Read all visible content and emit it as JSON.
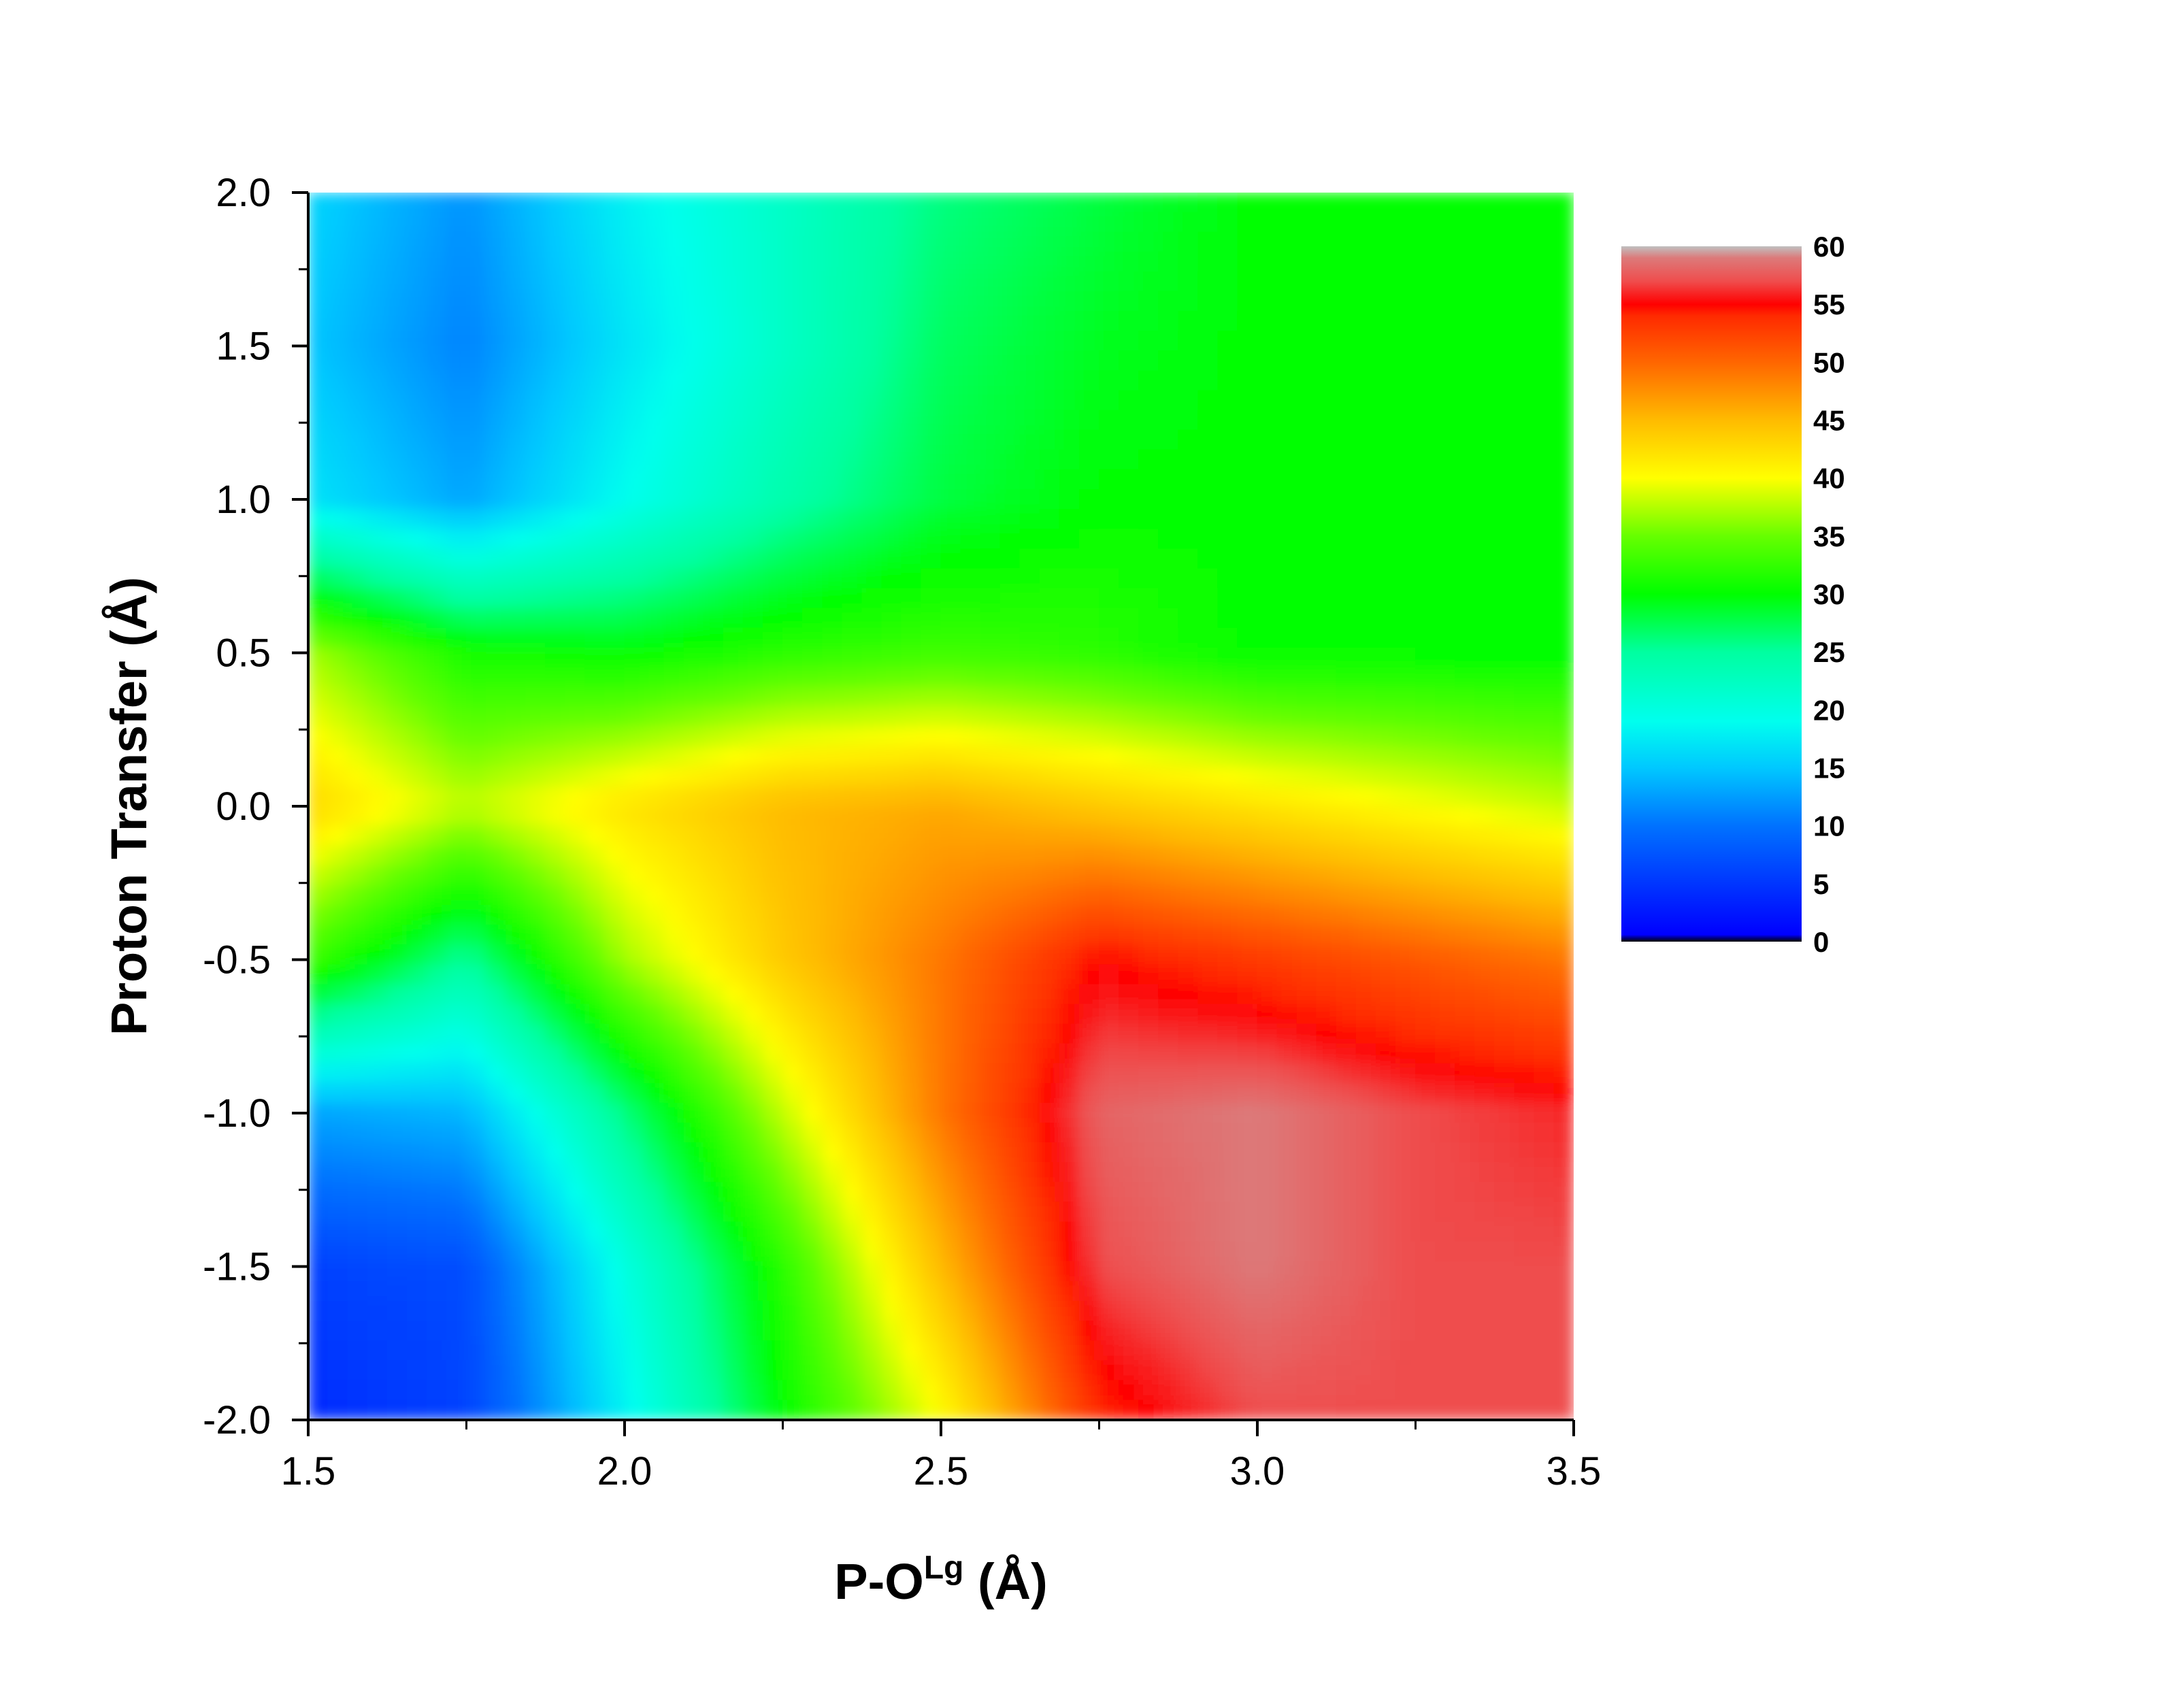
{
  "chart_data": {
    "type": "heatmap",
    "title": "",
    "xlabel": {
      "main": "P-O",
      "sup": "Lg",
      "unit": " (Å)"
    },
    "ylabel": "Proton Transfer (Å)",
    "xlim": [
      1.5,
      3.5
    ],
    "ylim": [
      -2.0,
      2.0
    ],
    "x_ticks": [
      "1.5",
      "2.0",
      "2.5",
      "3.0",
      "3.5"
    ],
    "y_ticks": [
      "2.0",
      "1.5",
      "1.0",
      "0.5",
      "0.0",
      "-0.5",
      "-1.0",
      "-1.5",
      "-2.0"
    ],
    "colorbar": {
      "range": [
        0,
        60
      ],
      "ticks": [
        "60",
        "55",
        "50",
        "45",
        "40",
        "35",
        "30",
        "25",
        "20",
        "15",
        "10",
        "5",
        "0"
      ],
      "stops": [
        {
          "value": 0,
          "color": "#000000"
        },
        {
          "value": 0.6,
          "color": "#0000ff"
        },
        {
          "value": 10,
          "color": "#0072ff"
        },
        {
          "value": 15,
          "color": "#00c8ff"
        },
        {
          "value": 19,
          "color": "#00ffee"
        },
        {
          "value": 25,
          "color": "#00ffa0"
        },
        {
          "value": 30,
          "color": "#00ff00"
        },
        {
          "value": 35,
          "color": "#66ff00"
        },
        {
          "value": 40,
          "color": "#ffff00"
        },
        {
          "value": 45,
          "color": "#ffbb00"
        },
        {
          "value": 50,
          "color": "#ff6600"
        },
        {
          "value": 54,
          "color": "#ff2a00"
        },
        {
          "value": 55,
          "color": "#ff0000"
        },
        {
          "value": 57,
          "color": "#ef4d4d"
        },
        {
          "value": 59,
          "color": "#dc7a7a"
        },
        {
          "value": 60,
          "color": "#c0c0c0"
        }
      ]
    },
    "x": [
      1.5,
      1.75,
      2.0,
      2.25,
      2.5,
      2.75,
      3.0,
      3.25,
      3.5
    ],
    "y": [
      2.0,
      1.5,
      1.0,
      0.5,
      0.0,
      -0.5,
      -1.0,
      -1.5,
      -2.0
    ],
    "z": [
      [
        16,
        12,
        18,
        22,
        26,
        28,
        30,
        30,
        30
      ],
      [
        15,
        11,
        17,
        22,
        27,
        29,
        30,
        30,
        30
      ],
      [
        17,
        13,
        19,
        24,
        28,
        30,
        30,
        30,
        30
      ],
      [
        37,
        31,
        30,
        32,
        33,
        32,
        30,
        30,
        30
      ],
      [
        43,
        38,
        42,
        45,
        46,
        44,
        42,
        40,
        38
      ],
      [
        33,
        25,
        37,
        44,
        49,
        55,
        53,
        51,
        49
      ],
      [
        13,
        14,
        26,
        38,
        49,
        58,
        59,
        57,
        56
      ],
      [
        6,
        7,
        20,
        32,
        45,
        57,
        59,
        57,
        57
      ],
      [
        4,
        6,
        18,
        30,
        40,
        54,
        57,
        57,
        57
      ]
    ]
  }
}
